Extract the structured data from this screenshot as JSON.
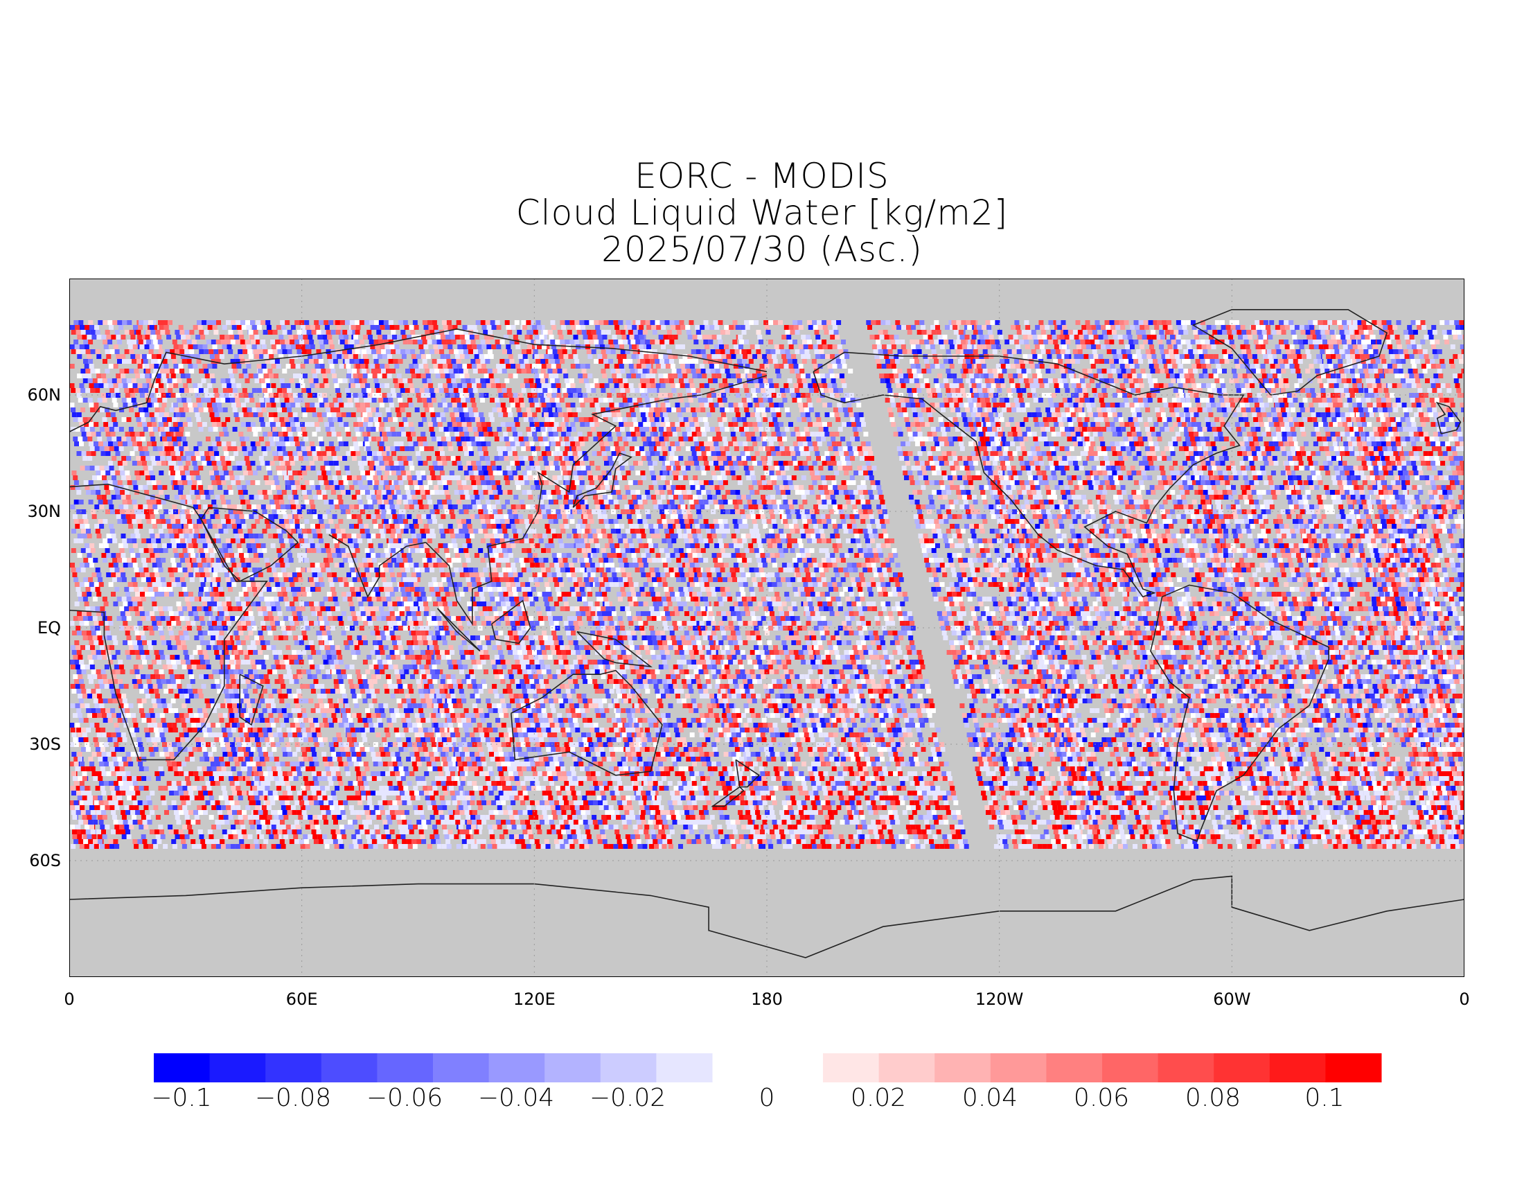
{
  "title": {
    "line1": "EORC - MODIS",
    "line2": "Cloud Liquid Water [kg/m2]",
    "line3": "2025/07/30 (Asc.)"
  },
  "map": {
    "projection": "equirectangular",
    "background_color": "#c8c8c8",
    "lat_range": [
      -90,
      90
    ],
    "lon_range": [
      0,
      360
    ],
    "lat_ticks": [
      "60N",
      "30N",
      "EQ",
      "30S",
      "60S"
    ],
    "lon_ticks": [
      "0",
      "60E",
      "120E",
      "180",
      "120W",
      "60W",
      "0"
    ]
  },
  "colorbar": {
    "negative_colors": [
      "#0000ff",
      "#1a1aff",
      "#3333ff",
      "#4d4dff",
      "#6666ff",
      "#8080ff",
      "#9999ff",
      "#b3b3ff",
      "#ccccff",
      "#e6e6ff"
    ],
    "positive_colors": [
      "#ffe6e6",
      "#ffcccc",
      "#ffb3b3",
      "#ff9999",
      "#ff8080",
      "#ff6666",
      "#ff4d4d",
      "#ff3333",
      "#ff1a1a",
      "#ff0000"
    ],
    "labels": [
      "-0.1",
      "-0.08",
      "-0.06",
      "-0.04",
      "-0.02",
      "0",
      "0.02",
      "0.04",
      "0.06",
      "0.08",
      "0.1"
    ]
  }
}
